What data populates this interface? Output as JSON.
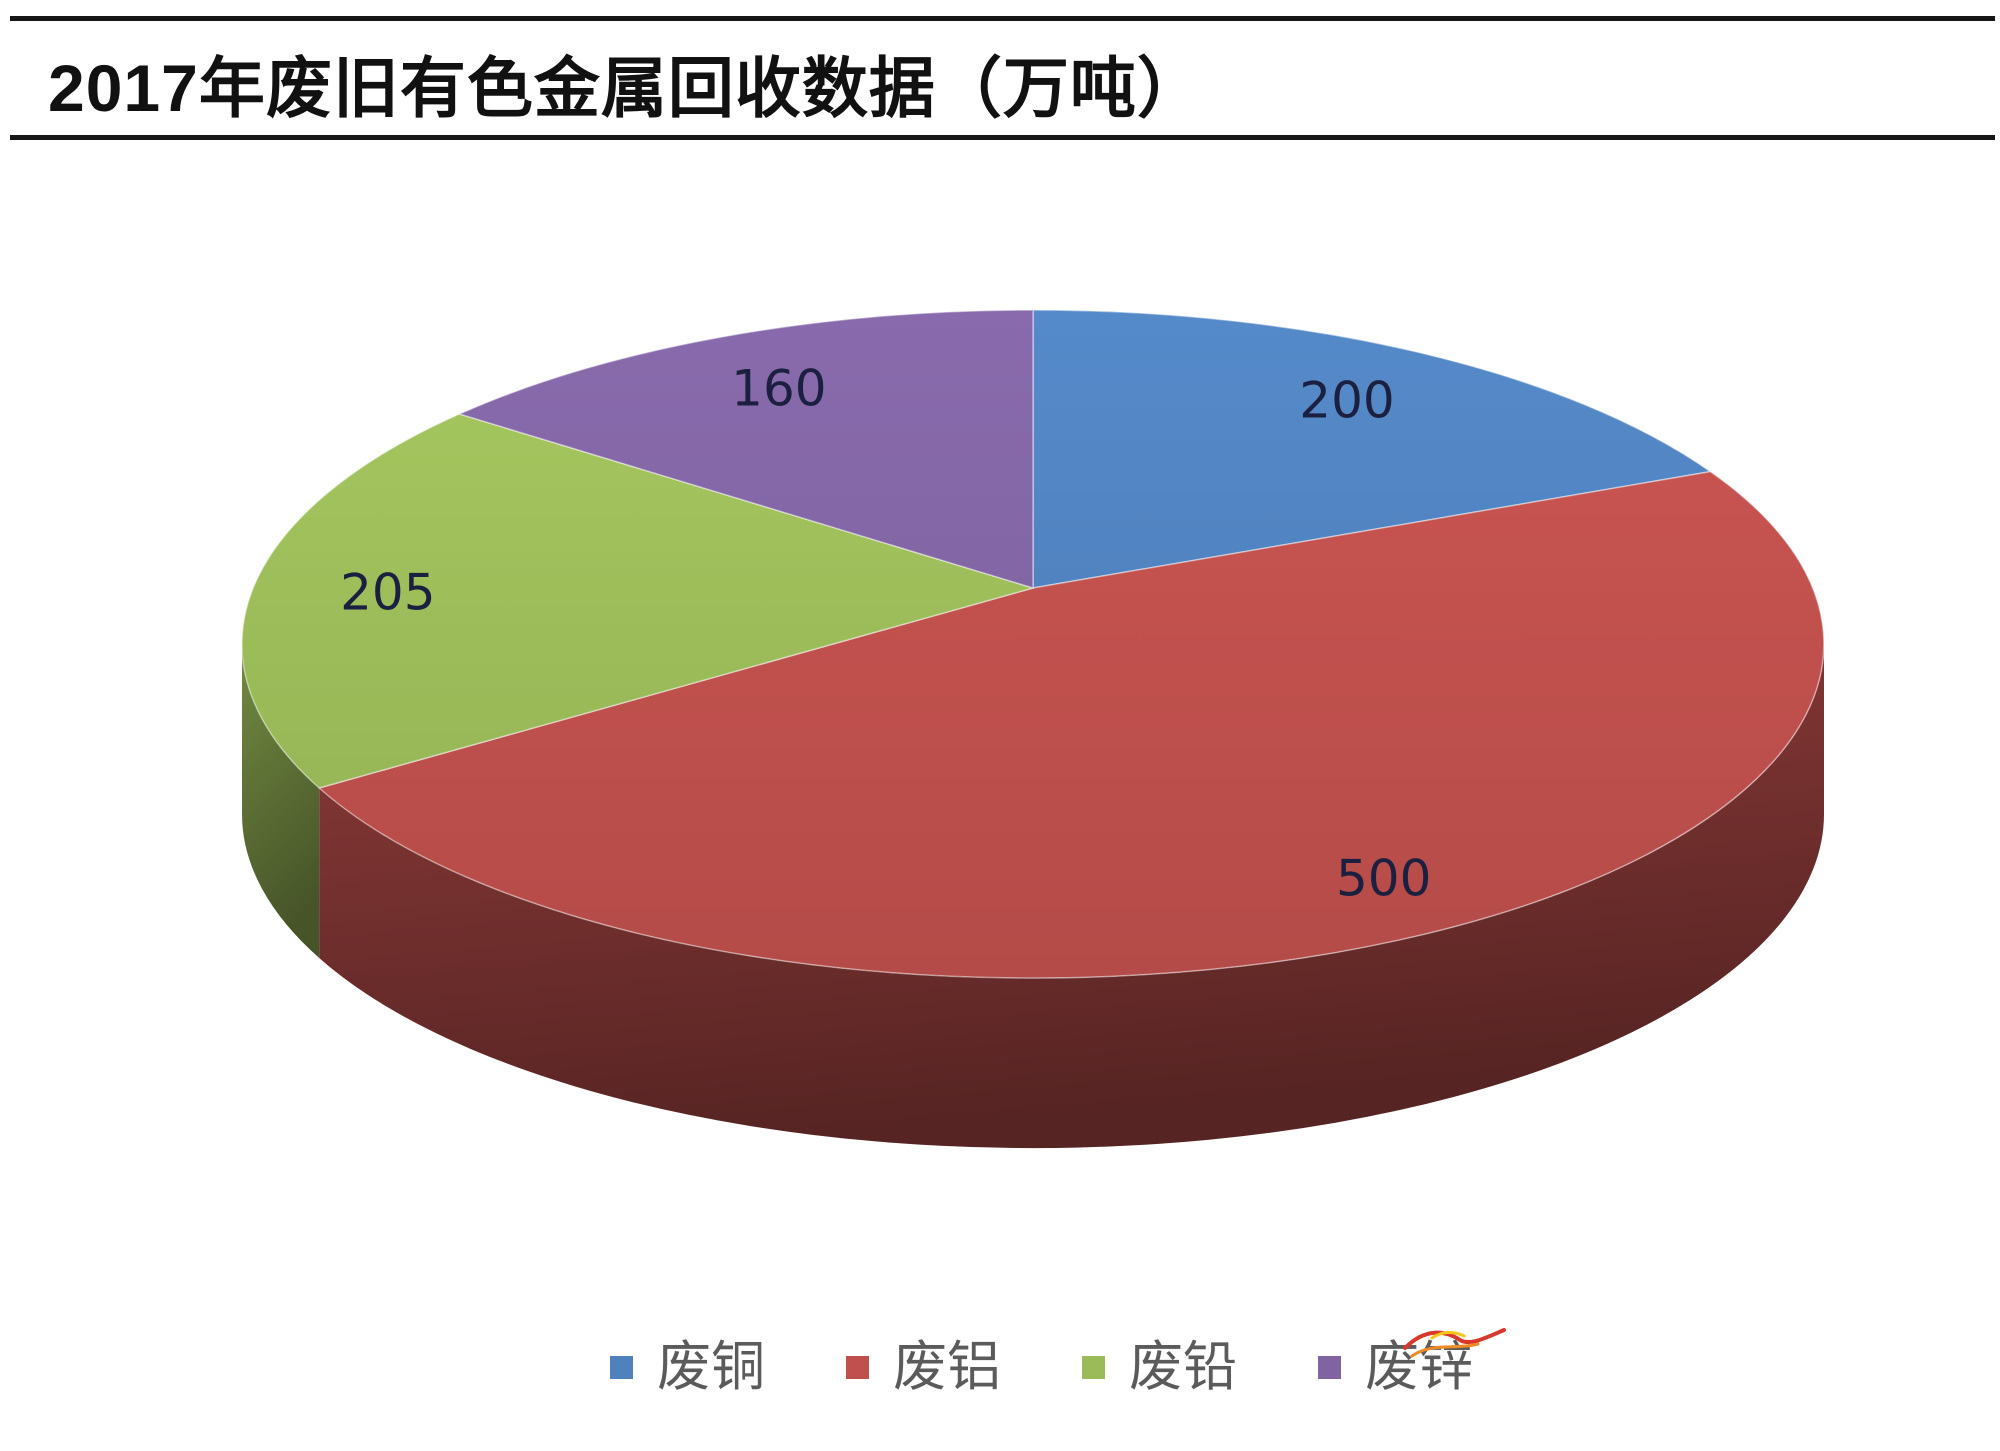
{
  "chart_data": {
    "type": "pie",
    "three_d": true,
    "title": "2017年废旧有色金属回收数据（万吨）",
    "categories": [
      "废铜",
      "废铝",
      "废铅",
      "废锌"
    ],
    "values": [
      200,
      500,
      205,
      160
    ],
    "colors": [
      "#4F81BD",
      "#C0504D",
      "#9BBB59",
      "#8064A2"
    ],
    "data_labels_shown": true,
    "legend_position": "bottom"
  }
}
